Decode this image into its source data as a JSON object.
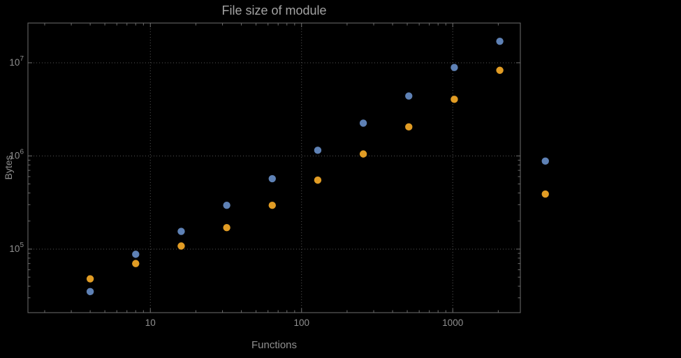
{
  "chart_data": {
    "type": "scatter",
    "title": "File size of module",
    "xlabel": "Functions",
    "ylabel": "Bytes",
    "xscale": "log",
    "yscale": "log",
    "xlim": [
      1.55,
      2800
    ],
    "ylim": [
      20800,
      26700000
    ],
    "grid": true,
    "legend": "none",
    "x": [
      4,
      8,
      16,
      32,
      64,
      128,
      256,
      512,
      1024,
      2048,
      4096
    ],
    "series": [
      {
        "name": "series_blue",
        "color": "#5E81B5",
        "values": [
          35000,
          88000,
          155000,
          295000,
          570000,
          1150000,
          2250000,
          4400000,
          8900000,
          17000000,
          880000
        ]
      },
      {
        "name": "series_orange",
        "color": "#E19C24",
        "values": [
          48000,
          70000,
          108000,
          170000,
          295000,
          550000,
          1050000,
          2050000,
          4050000,
          8300000,
          390000
        ]
      }
    ],
    "xticks": [
      {
        "label": "10",
        "value": 10
      },
      {
        "label": "100",
        "value": 100
      },
      {
        "label": "1000",
        "value": 1000
      }
    ],
    "yticks": [
      {
        "base": "10",
        "exp": "5",
        "value": 100000
      },
      {
        "base": "10",
        "exp": "6",
        "value": 1000000
      },
      {
        "base": "10",
        "exp": "7",
        "value": 10000000
      }
    ]
  }
}
